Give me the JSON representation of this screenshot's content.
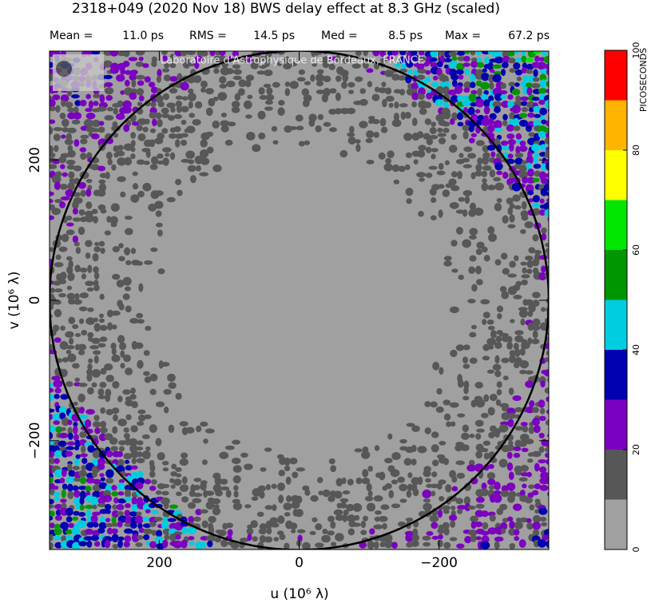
{
  "chart_data": {
    "type": "heatmap",
    "title": "2318+049  (2020 Nov 18)   BWS delay effect at  8.3 GHz (scaled)",
    "stats": {
      "labels": [
        "Mean =",
        "RMS =",
        "Med =",
        "Max ="
      ],
      "values": [
        11.0,
        14.5,
        8.5,
        67.2
      ],
      "value_labels": [
        "11.0 ps",
        "14.5 ps",
        "8.5 ps",
        "67.2 ps"
      ]
    },
    "watermark": "Laboratoire d'Astrophysique de Bordeaux, FRANCE",
    "x_label": "u  (10⁶ λ)",
    "y_label": "v  (10⁶ λ)",
    "xlim": [
      357,
      -357
    ],
    "ylim": [
      -355,
      355
    ],
    "xticks": [
      200,
      0,
      {
        "value": -200,
        "label": "−200"
      }
    ],
    "yticks": [
      200,
      0,
      {
        "value": -200,
        "label": "−200"
      }
    ],
    "circle_radius": 357,
    "colorbar": {
      "label": "PICOSECONDS",
      "lim": [
        0,
        100
      ],
      "ticks": [
        0,
        20,
        40,
        60,
        80,
        100
      ],
      "colors": [
        "#a0a0a0",
        "#575757",
        "#7b00bf",
        "#0000b0",
        "#00cce0",
        "#009600",
        "#00e600",
        "#ffff00",
        "#ffb400",
        "#ff0000"
      ]
    }
  }
}
